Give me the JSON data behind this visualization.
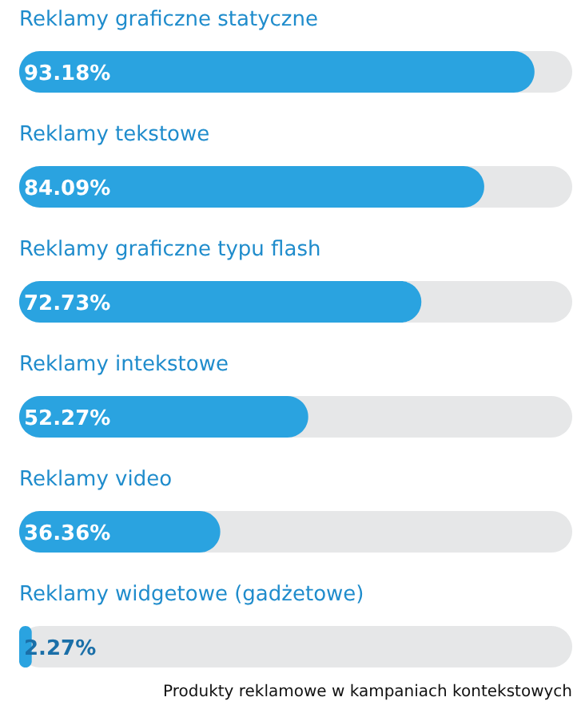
{
  "chart_data": {
    "type": "bar",
    "orientation": "horizontal",
    "categories": [
      "Reklamy graficzne statyczne",
      "Reklamy tekstowe",
      "Reklamy graficzne typu flash",
      "Reklamy intekstowe",
      "Reklamy video",
      "Reklamy widgetowe (gadżetowe)"
    ],
    "values": [
      93.18,
      84.09,
      72.73,
      52.27,
      36.36,
      2.27
    ],
    "value_labels": [
      "93.18%",
      "84.09%",
      "72.73%",
      "52.27%",
      "36.36%",
      "2.27%"
    ],
    "color": "#2aa3e0",
    "xlim": [
      0,
      100
    ],
    "tick_labels": false,
    "grid": false,
    "annotations": [
      "Produkty reklamowe w kampaniach kontekstowych"
    ]
  }
}
